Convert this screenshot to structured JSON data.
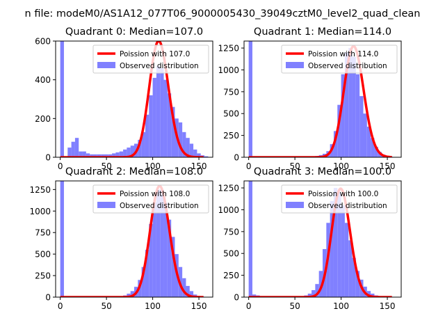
{
  "suptitle": "n file: modeM0/AS1A12_077T06_9000005430_39049cztM0_level2_quad_clean",
  "colors": {
    "hist": "#8080ff",
    "poisson": "#ff0000",
    "axis": "#000000",
    "background": "#ffffff"
  },
  "chart_data": [
    {
      "type": "histogram",
      "title": "Quadrant 0: Median=107.0",
      "xlim": [
        -5,
        165
      ],
      "ylim": [
        0,
        600
      ],
      "xticks": [
        0,
        50,
        100,
        150
      ],
      "yticks": [
        0,
        200,
        400,
        600
      ],
      "legend_position": "upper-right",
      "legend": {
        "line": "Poission with 107.0",
        "patch": "Observed distribution"
      },
      "poisson_mean": 107.0,
      "poisson_peak": 600,
      "bin_width": 4,
      "bins_start": [
        0,
        4,
        8,
        12,
        16,
        20,
        24,
        28,
        32,
        36,
        40,
        44,
        48,
        52,
        56,
        60,
        64,
        68,
        72,
        76,
        80,
        84,
        88,
        92,
        96,
        100,
        104,
        108,
        112,
        116,
        120,
        124,
        128,
        132,
        136,
        140,
        144,
        148,
        152,
        156
      ],
      "counts": [
        620,
        0,
        50,
        80,
        100,
        30,
        30,
        20,
        15,
        15,
        15,
        15,
        15,
        15,
        20,
        25,
        30,
        40,
        50,
        60,
        70,
        90,
        130,
        220,
        320,
        410,
        470,
        460,
        400,
        330,
        260,
        200,
        180,
        130,
        100,
        70,
        40,
        20,
        10,
        5
      ]
    },
    {
      "type": "histogram",
      "title": "Quadrant 1: Median=114.0",
      "xlim": [
        -5,
        165
      ],
      "ylim": [
        0,
        1330
      ],
      "xticks": [
        0,
        50,
        100,
        150
      ],
      "yticks": [
        0,
        250,
        500,
        750,
        1000,
        1250
      ],
      "legend_position": "upper-right",
      "legend": {
        "line": "Poission with 114.0",
        "patch": "Observed distribution"
      },
      "poisson_mean": 114.0,
      "poisson_peak": 1270,
      "bin_width": 4,
      "bins_start": [
        0,
        4,
        8,
        12,
        16,
        20,
        24,
        28,
        32,
        36,
        40,
        44,
        48,
        52,
        56,
        60,
        64,
        68,
        72,
        76,
        80,
        84,
        88,
        92,
        96,
        100,
        104,
        108,
        112,
        116,
        120,
        124,
        128,
        132,
        136,
        140,
        144,
        148,
        152,
        156
      ],
      "counts": [
        1400,
        0,
        0,
        0,
        0,
        0,
        0,
        0,
        0,
        0,
        0,
        0,
        0,
        0,
        0,
        0,
        5,
        8,
        15,
        25,
        40,
        70,
        150,
        300,
        600,
        950,
        1200,
        1250,
        1150,
        950,
        700,
        500,
        350,
        220,
        120,
        60,
        30,
        10,
        5,
        0
      ]
    },
    {
      "type": "histogram",
      "title": "Quadrant 2: Median=108.0",
      "xlim": [
        -5,
        165
      ],
      "ylim": [
        0,
        1350
      ],
      "xticks": [
        0,
        50,
        100,
        150
      ],
      "yticks": [
        0,
        250,
        500,
        750,
        1000,
        1250
      ],
      "legend_position": "upper-right",
      "legend": {
        "line": "Poission with 108.0",
        "patch": "Observed distribution"
      },
      "poisson_mean": 108.0,
      "poisson_peak": 1290,
      "bin_width": 4,
      "bins_start": [
        0,
        4,
        8,
        12,
        16,
        20,
        24,
        28,
        32,
        36,
        40,
        44,
        48,
        52,
        56,
        60,
        64,
        68,
        72,
        76,
        80,
        84,
        88,
        92,
        96,
        100,
        104,
        108,
        112,
        116,
        120,
        124,
        128,
        132,
        136,
        140,
        144,
        148,
        152,
        156
      ],
      "counts": [
        1400,
        0,
        0,
        0,
        0,
        0,
        0,
        0,
        0,
        0,
        0,
        0,
        0,
        0,
        0,
        0,
        10,
        20,
        40,
        70,
        120,
        200,
        350,
        550,
        850,
        1100,
        1250,
        1250,
        1100,
        900,
        700,
        500,
        350,
        220,
        130,
        70,
        30,
        10,
        5,
        0
      ]
    },
    {
      "type": "histogram",
      "title": "Quadrant 3: Median=100.0",
      "xlim": [
        -5,
        165
      ],
      "ylim": [
        0,
        1330
      ],
      "xticks": [
        0,
        50,
        100,
        150
      ],
      "yticks": [
        0,
        250,
        500,
        750,
        1000,
        1250
      ],
      "legend_position": "upper-right",
      "legend": {
        "line": "Poission with 100.0",
        "patch": "Observed distribution"
      },
      "poisson_mean": 100.0,
      "poisson_peak": 1240,
      "bin_width": 4,
      "bins_start": [
        0,
        4,
        8,
        12,
        16,
        20,
        24,
        28,
        32,
        36,
        40,
        44,
        48,
        52,
        56,
        60,
        64,
        68,
        72,
        76,
        80,
        84,
        88,
        92,
        96,
        100,
        104,
        108,
        112,
        116,
        120,
        124,
        128,
        132,
        136,
        140,
        144,
        148,
        152,
        156
      ],
      "counts": [
        1400,
        30,
        20,
        10,
        5,
        5,
        5,
        5,
        5,
        5,
        5,
        5,
        5,
        5,
        10,
        20,
        40,
        80,
        150,
        300,
        550,
        850,
        1100,
        1250,
        1200,
        1050,
        850,
        650,
        450,
        300,
        200,
        120,
        70,
        40,
        20,
        10,
        5,
        0,
        0,
        0
      ]
    }
  ]
}
